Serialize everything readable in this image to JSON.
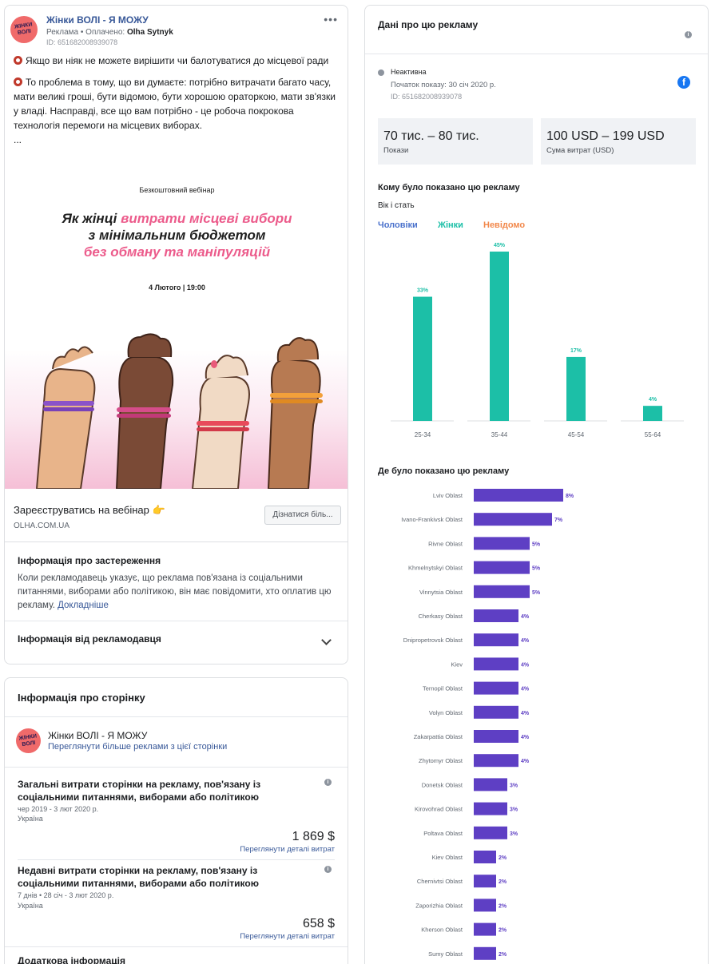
{
  "ad": {
    "page_name": "Жінки ВОЛІ - Я МОЖУ",
    "avatar_text": "ЖІНКИ ВОЛІ",
    "meta_prefix": "Реклама • Оплачено: ",
    "paid_by": "Olha Sytnyk",
    "id_line": "ID: 651682008939078",
    "more_icon": "more-icon",
    "text_p1": "Якщо ви ніяк не можете вирішити чи балотуватися до місцевої ради",
    "text_p2": "То проблема в тому, що ви думаєте: потрібно витрачати багато часу, мати великі гроші, бути відомою, бути хорошою ораторкою, мати зв'язки у владі. Насправді, все що вам потрібно - це робоча покрокова технологія перемоги на місцевих виборах.",
    "text_more": "...",
    "creative": {
      "top_label": "Безкоштовний вебінар",
      "title_a": "Як жінці ",
      "title_b": "витрати місцеві вибори",
      "title_c": "з мінімальним бюджетом",
      "title_d": "без обману та маніпуляцій",
      "date": "4 Лютого | 19:00"
    },
    "cta_title": "Зареєструватись на вебінар 👉",
    "cta_domain": "OLHA.COM.UA",
    "cta_button": "Дізнатися біль..."
  },
  "disclaimer": {
    "title": "Інформація про застереження",
    "text": "Коли рекламодавець указує, що реклама пов'язана із соціальними питаннями, виборами або політикою, він має повідомити, хто оплатив цю рекламу.",
    "link": "Докладніше",
    "advertiser_title": "Інформація від рекламодавця"
  },
  "page_info": {
    "title": "Інформація про сторінку",
    "page_name": "Жінки ВОЛІ - Я МОЖУ",
    "see_more_link": "Переглянути більше реклами з цієї сторінки",
    "total": {
      "title": "Загальні витрати сторінки на рекламу, пов'язану із соціальними питаннями, виборами або політикою",
      "range": "чер 2019 - 3 лют 2020 р.",
      "country": "Україна",
      "amount": "1 869 $",
      "link": "Переглянути деталі витрат"
    },
    "recent": {
      "title": "Недавні витрати сторінки на рекламу, пов'язану із соціальними питаннями, виборами або політикою",
      "range": "7 днів • 28 січ - 3 лют 2020 р.",
      "country": "Україна",
      "amount": "658 $",
      "link": "Переглянути деталі витрат"
    },
    "extra_title": "Додаткова інформація"
  },
  "stats": {
    "title": "Дані про цю рекламу",
    "status": "Неактивна",
    "start": "Початок показу: 30 січ 2020 р.",
    "id_line": "ID: 651682008939078",
    "impressions_value": "70 тис. – 80 тис.",
    "impressions_label": "Покази",
    "spend_value": "100 USD – 199 USD",
    "spend_label": "Сума витрат (USD)",
    "audience_title": "Кому було показано цю рекламу",
    "age_gender_title": "Вік і стать",
    "legend_men": "Чоловіки",
    "legend_women": "Жінки",
    "legend_unknown": "Невідомо",
    "region_title": "Де було показано цю рекламу"
  },
  "colors": {
    "men": "#4b72cc",
    "women": "#1cbfa7",
    "unknown": "#f2884b",
    "region_bar": "#5e3fc4",
    "link": "#385898"
  },
  "chart_data": [
    {
      "type": "bar",
      "categories": [
        "25-34",
        "35-44",
        "45-54",
        "55-64"
      ],
      "series": [
        {
          "name": "Жінки",
          "values": [
            33,
            45,
            17,
            4
          ]
        }
      ],
      "data_labels": [
        "33%",
        "45%",
        "17%",
        "4%"
      ],
      "ylim": [
        0,
        45
      ],
      "title": "Вік і стать"
    },
    {
      "type": "bar",
      "orientation": "horizontal",
      "title": "Де було показано цю рекламу",
      "categories": [
        "Lviv Oblast",
        "Ivano-Frankivsk Oblast",
        "Rivne Oblast",
        "Khmelnytskyi Oblast",
        "Vinnytsia Oblast",
        "Cherkasy Oblast",
        "Dnipropetrovsk Oblast",
        "Kiev",
        "Ternopil Oblast",
        "Volyn Oblast",
        "Zakarpattia Oblast",
        "Zhytomyr Oblast",
        "Donetsk Oblast",
        "Kirovohrad Oblast",
        "Poltava Oblast",
        "Kiev Oblast",
        "Chernivtsi Oblast",
        "Zaporizhia Oblast",
        "Kherson Oblast",
        "Sumy Oblast"
      ],
      "values": [
        8,
        7,
        5,
        5,
        5,
        4,
        4,
        4,
        4,
        4,
        4,
        4,
        3,
        3,
        3,
        2,
        2,
        2,
        2,
        2
      ],
      "data_labels": [
        "8%",
        "7%",
        "5%",
        "5%",
        "5%",
        "4%",
        "4%",
        "4%",
        "4%",
        "4%",
        "4%",
        "4%",
        "3%",
        "3%",
        "3%",
        "2%",
        "2%",
        "2%",
        "2%",
        "2%"
      ]
    }
  ]
}
